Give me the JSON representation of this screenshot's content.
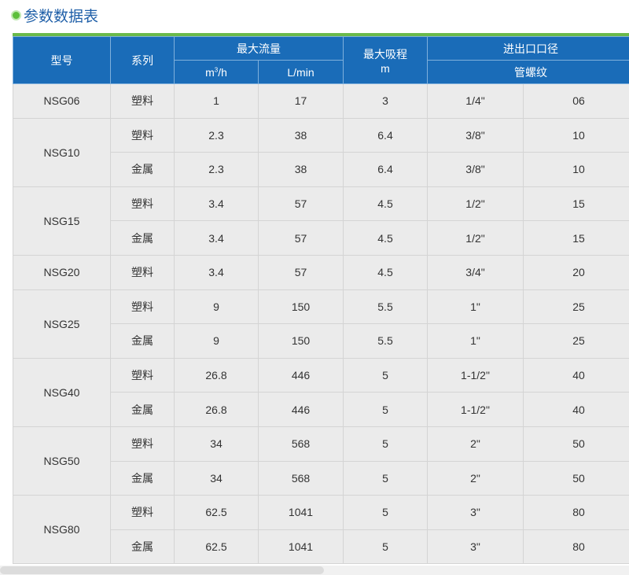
{
  "title": "参数数据表",
  "header": {
    "model": "型号",
    "series": "系列",
    "max_flow": "最大流量",
    "flow_unit_m3h": "m",
    "flow_unit_m3h_sup": "3",
    "flow_unit_m3h_tail": "/h",
    "flow_unit_lmin": "L/min",
    "max_suction": "最大吸程",
    "suction_unit": "m",
    "port_size": "进出口口径",
    "thread": "管螺纹"
  },
  "rows": [
    {
      "model": "NSG06",
      "items": [
        {
          "series": "塑料",
          "m3h": "1",
          "lmin": "17",
          "suction": "3",
          "inch": "1/4\"",
          "code": "06"
        }
      ]
    },
    {
      "model": "NSG10",
      "items": [
        {
          "series": "塑料",
          "m3h": "2.3",
          "lmin": "38",
          "suction": "6.4",
          "inch": "3/8\"",
          "code": "10"
        },
        {
          "series": "金属",
          "m3h": "2.3",
          "lmin": "38",
          "suction": "6.4",
          "inch": "3/8\"",
          "code": "10"
        }
      ]
    },
    {
      "model": "NSG15",
      "items": [
        {
          "series": "塑料",
          "m3h": "3.4",
          "lmin": "57",
          "suction": "4.5",
          "inch": "1/2\"",
          "code": "15"
        },
        {
          "series": "金属",
          "m3h": "3.4",
          "lmin": "57",
          "suction": "4.5",
          "inch": "1/2\"",
          "code": "15"
        }
      ]
    },
    {
      "model": "NSG20",
      "items": [
        {
          "series": "塑料",
          "m3h": "3.4",
          "lmin": "57",
          "suction": "4.5",
          "inch": "3/4\"",
          "code": "20"
        }
      ]
    },
    {
      "model": "NSG25",
      "items": [
        {
          "series": "塑料",
          "m3h": "9",
          "lmin": "150",
          "suction": "5.5",
          "inch": "1\"",
          "code": "25"
        },
        {
          "series": "金属",
          "m3h": "9",
          "lmin": "150",
          "suction": "5.5",
          "inch": "1\"",
          "code": "25"
        }
      ]
    },
    {
      "model": "NSG40",
      "items": [
        {
          "series": "塑料",
          "m3h": "26.8",
          "lmin": "446",
          "suction": "5",
          "inch": "1-1/2\"",
          "code": "40"
        },
        {
          "series": "金属",
          "m3h": "26.8",
          "lmin": "446",
          "suction": "5",
          "inch": "1-1/2\"",
          "code": "40"
        }
      ]
    },
    {
      "model": "NSG50",
      "items": [
        {
          "series": "塑料",
          "m3h": "34",
          "lmin": "568",
          "suction": "5",
          "inch": "2\"",
          "code": "50"
        },
        {
          "series": "金属",
          "m3h": "34",
          "lmin": "568",
          "suction": "5",
          "inch": "2\"",
          "code": "50"
        }
      ]
    },
    {
      "model": "NSG80",
      "items": [
        {
          "series": "塑料",
          "m3h": "62.5",
          "lmin": "1041",
          "suction": "5",
          "inch": "3\"",
          "code": "80"
        },
        {
          "series": "金属",
          "m3h": "62.5",
          "lmin": "1041",
          "suction": "5",
          "inch": "3\"",
          "code": "80"
        }
      ]
    }
  ]
}
